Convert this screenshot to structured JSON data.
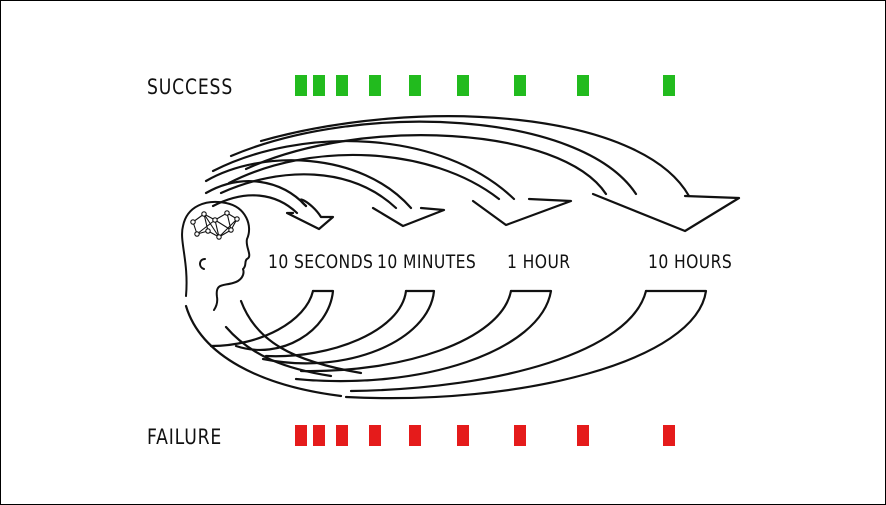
{
  "labels": {
    "success": "SUCCESS",
    "failure": "FAILURE"
  },
  "intervals": [
    {
      "label": "10 SECONDS"
    },
    {
      "label": "10 MINUTES"
    },
    {
      "label": "1 HOUR"
    },
    {
      "label": "10 HOURS"
    }
  ],
  "colors": {
    "success": "#22bb1e",
    "failure": "#e51b1b",
    "ink": "#111111"
  },
  "icons": {
    "head": "head-with-neural-network-icon"
  },
  "blocks": {
    "success_count": 9,
    "failure_count": 9
  }
}
